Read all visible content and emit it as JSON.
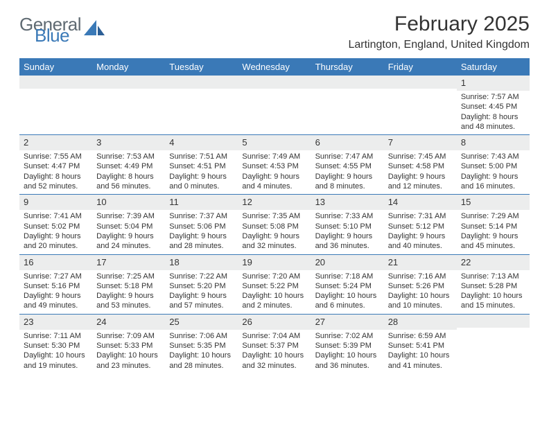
{
  "logo": {
    "text1": "General",
    "text2": "Blue"
  },
  "title": "February 2025",
  "location": "Lartington, England, United Kingdom",
  "colors": {
    "header_bg": "#3a79b7",
    "daynum_bg": "#eceded",
    "text": "#333333",
    "logo_gray": "#5f6a72",
    "logo_blue": "#3a79b7"
  },
  "dow": [
    "Sunday",
    "Monday",
    "Tuesday",
    "Wednesday",
    "Thursday",
    "Friday",
    "Saturday"
  ],
  "weeks": [
    [
      null,
      null,
      null,
      null,
      null,
      null,
      {
        "n": "1",
        "sr": "Sunrise: 7:57 AM",
        "ss": "Sunset: 4:45 PM",
        "dl": "Daylight: 8 hours and 48 minutes."
      }
    ],
    [
      {
        "n": "2",
        "sr": "Sunrise: 7:55 AM",
        "ss": "Sunset: 4:47 PM",
        "dl": "Daylight: 8 hours and 52 minutes."
      },
      {
        "n": "3",
        "sr": "Sunrise: 7:53 AM",
        "ss": "Sunset: 4:49 PM",
        "dl": "Daylight: 8 hours and 56 minutes."
      },
      {
        "n": "4",
        "sr": "Sunrise: 7:51 AM",
        "ss": "Sunset: 4:51 PM",
        "dl": "Daylight: 9 hours and 0 minutes."
      },
      {
        "n": "5",
        "sr": "Sunrise: 7:49 AM",
        "ss": "Sunset: 4:53 PM",
        "dl": "Daylight: 9 hours and 4 minutes."
      },
      {
        "n": "6",
        "sr": "Sunrise: 7:47 AM",
        "ss": "Sunset: 4:55 PM",
        "dl": "Daylight: 9 hours and 8 minutes."
      },
      {
        "n": "7",
        "sr": "Sunrise: 7:45 AM",
        "ss": "Sunset: 4:58 PM",
        "dl": "Daylight: 9 hours and 12 minutes."
      },
      {
        "n": "8",
        "sr": "Sunrise: 7:43 AM",
        "ss": "Sunset: 5:00 PM",
        "dl": "Daylight: 9 hours and 16 minutes."
      }
    ],
    [
      {
        "n": "9",
        "sr": "Sunrise: 7:41 AM",
        "ss": "Sunset: 5:02 PM",
        "dl": "Daylight: 9 hours and 20 minutes."
      },
      {
        "n": "10",
        "sr": "Sunrise: 7:39 AM",
        "ss": "Sunset: 5:04 PM",
        "dl": "Daylight: 9 hours and 24 minutes."
      },
      {
        "n": "11",
        "sr": "Sunrise: 7:37 AM",
        "ss": "Sunset: 5:06 PM",
        "dl": "Daylight: 9 hours and 28 minutes."
      },
      {
        "n": "12",
        "sr": "Sunrise: 7:35 AM",
        "ss": "Sunset: 5:08 PM",
        "dl": "Daylight: 9 hours and 32 minutes."
      },
      {
        "n": "13",
        "sr": "Sunrise: 7:33 AM",
        "ss": "Sunset: 5:10 PM",
        "dl": "Daylight: 9 hours and 36 minutes."
      },
      {
        "n": "14",
        "sr": "Sunrise: 7:31 AM",
        "ss": "Sunset: 5:12 PM",
        "dl": "Daylight: 9 hours and 40 minutes."
      },
      {
        "n": "15",
        "sr": "Sunrise: 7:29 AM",
        "ss": "Sunset: 5:14 PM",
        "dl": "Daylight: 9 hours and 45 minutes."
      }
    ],
    [
      {
        "n": "16",
        "sr": "Sunrise: 7:27 AM",
        "ss": "Sunset: 5:16 PM",
        "dl": "Daylight: 9 hours and 49 minutes."
      },
      {
        "n": "17",
        "sr": "Sunrise: 7:25 AM",
        "ss": "Sunset: 5:18 PM",
        "dl": "Daylight: 9 hours and 53 minutes."
      },
      {
        "n": "18",
        "sr": "Sunrise: 7:22 AM",
        "ss": "Sunset: 5:20 PM",
        "dl": "Daylight: 9 hours and 57 minutes."
      },
      {
        "n": "19",
        "sr": "Sunrise: 7:20 AM",
        "ss": "Sunset: 5:22 PM",
        "dl": "Daylight: 10 hours and 2 minutes."
      },
      {
        "n": "20",
        "sr": "Sunrise: 7:18 AM",
        "ss": "Sunset: 5:24 PM",
        "dl": "Daylight: 10 hours and 6 minutes."
      },
      {
        "n": "21",
        "sr": "Sunrise: 7:16 AM",
        "ss": "Sunset: 5:26 PM",
        "dl": "Daylight: 10 hours and 10 minutes."
      },
      {
        "n": "22",
        "sr": "Sunrise: 7:13 AM",
        "ss": "Sunset: 5:28 PM",
        "dl": "Daylight: 10 hours and 15 minutes."
      }
    ],
    [
      {
        "n": "23",
        "sr": "Sunrise: 7:11 AM",
        "ss": "Sunset: 5:30 PM",
        "dl": "Daylight: 10 hours and 19 minutes."
      },
      {
        "n": "24",
        "sr": "Sunrise: 7:09 AM",
        "ss": "Sunset: 5:33 PM",
        "dl": "Daylight: 10 hours and 23 minutes."
      },
      {
        "n": "25",
        "sr": "Sunrise: 7:06 AM",
        "ss": "Sunset: 5:35 PM",
        "dl": "Daylight: 10 hours and 28 minutes."
      },
      {
        "n": "26",
        "sr": "Sunrise: 7:04 AM",
        "ss": "Sunset: 5:37 PM",
        "dl": "Daylight: 10 hours and 32 minutes."
      },
      {
        "n": "27",
        "sr": "Sunrise: 7:02 AM",
        "ss": "Sunset: 5:39 PM",
        "dl": "Daylight: 10 hours and 36 minutes."
      },
      {
        "n": "28",
        "sr": "Sunrise: 6:59 AM",
        "ss": "Sunset: 5:41 PM",
        "dl": "Daylight: 10 hours and 41 minutes."
      },
      null
    ]
  ]
}
